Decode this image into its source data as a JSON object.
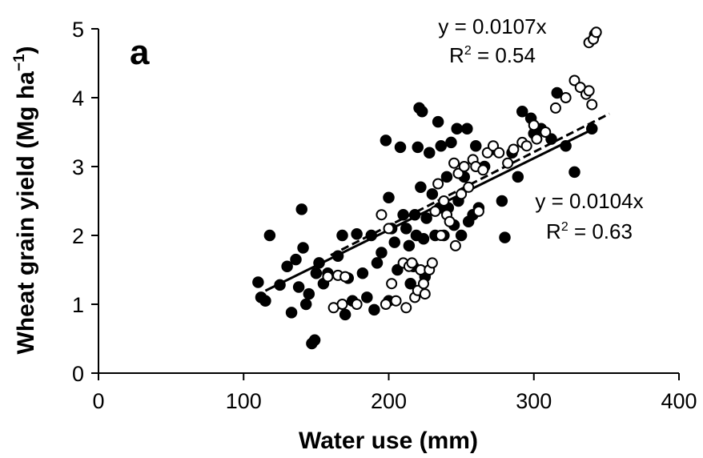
{
  "chart_data": {
    "type": "scatter",
    "panel_label": "a",
    "xlabel": "Water use (mm)",
    "ylabel": "Wheat grain yield (Mg ha",
    "ylabel_sup": "−1",
    "ylabel_close": ")",
    "xlim": [
      0,
      400
    ],
    "ylim": [
      0,
      5
    ],
    "xticks": [
      0,
      100,
      200,
      300,
      400
    ],
    "yticks": [
      0,
      1,
      2,
      3,
      4,
      5
    ],
    "grid": false,
    "series": [
      {
        "marker": "filled",
        "fit": {
          "slope": 0.0104,
          "eq_text": "y = 0.0104x",
          "r2_prefix": "R",
          "r2_sup": "2",
          "r2_value": " = 0.63"
        },
        "points": [
          [
            110,
            1.32
          ],
          [
            112,
            1.1
          ],
          [
            115,
            1.05
          ],
          [
            118,
            2.0
          ],
          [
            125,
            1.28
          ],
          [
            130,
            1.55
          ],
          [
            133,
            0.88
          ],
          [
            136,
            1.65
          ],
          [
            138,
            1.25
          ],
          [
            140,
            2.38
          ],
          [
            141,
            1.82
          ],
          [
            143,
            1.0
          ],
          [
            145,
            1.15
          ],
          [
            147,
            0.43
          ],
          [
            149,
            0.48
          ],
          [
            150,
            1.45
          ],
          [
            152,
            1.6
          ],
          [
            155,
            1.3
          ],
          [
            158,
            1.45
          ],
          [
            165,
            1.7
          ],
          [
            168,
            2.0
          ],
          [
            170,
            0.85
          ],
          [
            172,
            1.38
          ],
          [
            175,
            1.05
          ],
          [
            178,
            2.02
          ],
          [
            182,
            1.45
          ],
          [
            185,
            1.1
          ],
          [
            188,
            2.0
          ],
          [
            190,
            0.92
          ],
          [
            192,
            1.6
          ],
          [
            195,
            1.75
          ],
          [
            198,
            3.38
          ],
          [
            200,
            2.55
          ],
          [
            200,
            1.05
          ],
          [
            202,
            2.1
          ],
          [
            204,
            1.9
          ],
          [
            206,
            1.5
          ],
          [
            208,
            3.28
          ],
          [
            210,
            2.3
          ],
          [
            212,
            2.1
          ],
          [
            214,
            1.85
          ],
          [
            215,
            1.3
          ],
          [
            217,
            1.55
          ],
          [
            218,
            2.3
          ],
          [
            219,
            2.0
          ],
          [
            220,
            3.28
          ],
          [
            221,
            3.85
          ],
          [
            222,
            2.7
          ],
          [
            223,
            3.8
          ],
          [
            224,
            1.95
          ],
          [
            225,
            1.4
          ],
          [
            226,
            2.25
          ],
          [
            228,
            3.2
          ],
          [
            230,
            2.6
          ],
          [
            232,
            2.0
          ],
          [
            234,
            3.65
          ],
          [
            235,
            2.4
          ],
          [
            236,
            3.3
          ],
          [
            238,
            2.0
          ],
          [
            240,
            2.85
          ],
          [
            241,
            2.4
          ],
          [
            243,
            3.35
          ],
          [
            245,
            2.15
          ],
          [
            247,
            3.55
          ],
          [
            248,
            2.5
          ],
          [
            250,
            2.0
          ],
          [
            252,
            2.85
          ],
          [
            254,
            3.55
          ],
          [
            255,
            2.2
          ],
          [
            258,
            2.3
          ],
          [
            260,
            3.3
          ],
          [
            262,
            2.4
          ],
          [
            266,
            3.0
          ],
          [
            272,
            3.25
          ],
          [
            278,
            2.5
          ],
          [
            280,
            1.97
          ],
          [
            285,
            3.2
          ],
          [
            289,
            2.85
          ],
          [
            292,
            3.8
          ],
          [
            298,
            3.7
          ],
          [
            300,
            3.48
          ],
          [
            305,
            3.55
          ],
          [
            312,
            3.4
          ],
          [
            316,
            4.07
          ],
          [
            322,
            3.3
          ],
          [
            328,
            2.92
          ],
          [
            340,
            3.55
          ],
          [
            342,
            4.92
          ]
        ]
      },
      {
        "marker": "open",
        "fit": {
          "slope": 0.0107,
          "eq_text": "y = 0.0107x",
          "r2_prefix": "R",
          "r2_sup": "2",
          "r2_value": " = 0.54"
        },
        "points": [
          [
            158,
            1.4
          ],
          [
            162,
            0.95
          ],
          [
            165,
            1.42
          ],
          [
            168,
            1.0
          ],
          [
            170,
            1.4
          ],
          [
            178,
            1.0
          ],
          [
            195,
            2.3
          ],
          [
            198,
            1.0
          ],
          [
            200,
            2.1
          ],
          [
            202,
            1.3
          ],
          [
            205,
            1.05
          ],
          [
            210,
            1.6
          ],
          [
            212,
            0.95
          ],
          [
            214,
            1.55
          ],
          [
            216,
            1.6
          ],
          [
            218,
            1.1
          ],
          [
            220,
            1.2
          ],
          [
            222,
            1.5
          ],
          [
            224,
            1.3
          ],
          [
            225,
            1.15
          ],
          [
            228,
            1.5
          ],
          [
            230,
            1.6
          ],
          [
            232,
            2.35
          ],
          [
            234,
            2.75
          ],
          [
            236,
            2.0
          ],
          [
            238,
            2.5
          ],
          [
            240,
            2.3
          ],
          [
            242,
            2.2
          ],
          [
            245,
            3.05
          ],
          [
            246,
            1.85
          ],
          [
            248,
            2.9
          ],
          [
            250,
            2.6
          ],
          [
            252,
            3.0
          ],
          [
            255,
            2.7
          ],
          [
            258,
            3.1
          ],
          [
            260,
            3.0
          ],
          [
            262,
            2.35
          ],
          [
            265,
            2.95
          ],
          [
            268,
            3.2
          ],
          [
            272,
            3.3
          ],
          [
            276,
            3.2
          ],
          [
            282,
            3.05
          ],
          [
            286,
            3.25
          ],
          [
            292,
            3.35
          ],
          [
            295,
            3.3
          ],
          [
            300,
            3.6
          ],
          [
            302,
            3.4
          ],
          [
            308,
            3.5
          ],
          [
            315,
            3.85
          ],
          [
            322,
            4.0
          ],
          [
            328,
            4.25
          ],
          [
            332,
            4.15
          ],
          [
            336,
            4.05
          ],
          [
            338,
            4.1
          ],
          [
            340,
            3.9
          ],
          [
            338,
            4.8
          ],
          [
            341,
            4.85
          ],
          [
            343,
            4.95
          ]
        ]
      }
    ]
  }
}
